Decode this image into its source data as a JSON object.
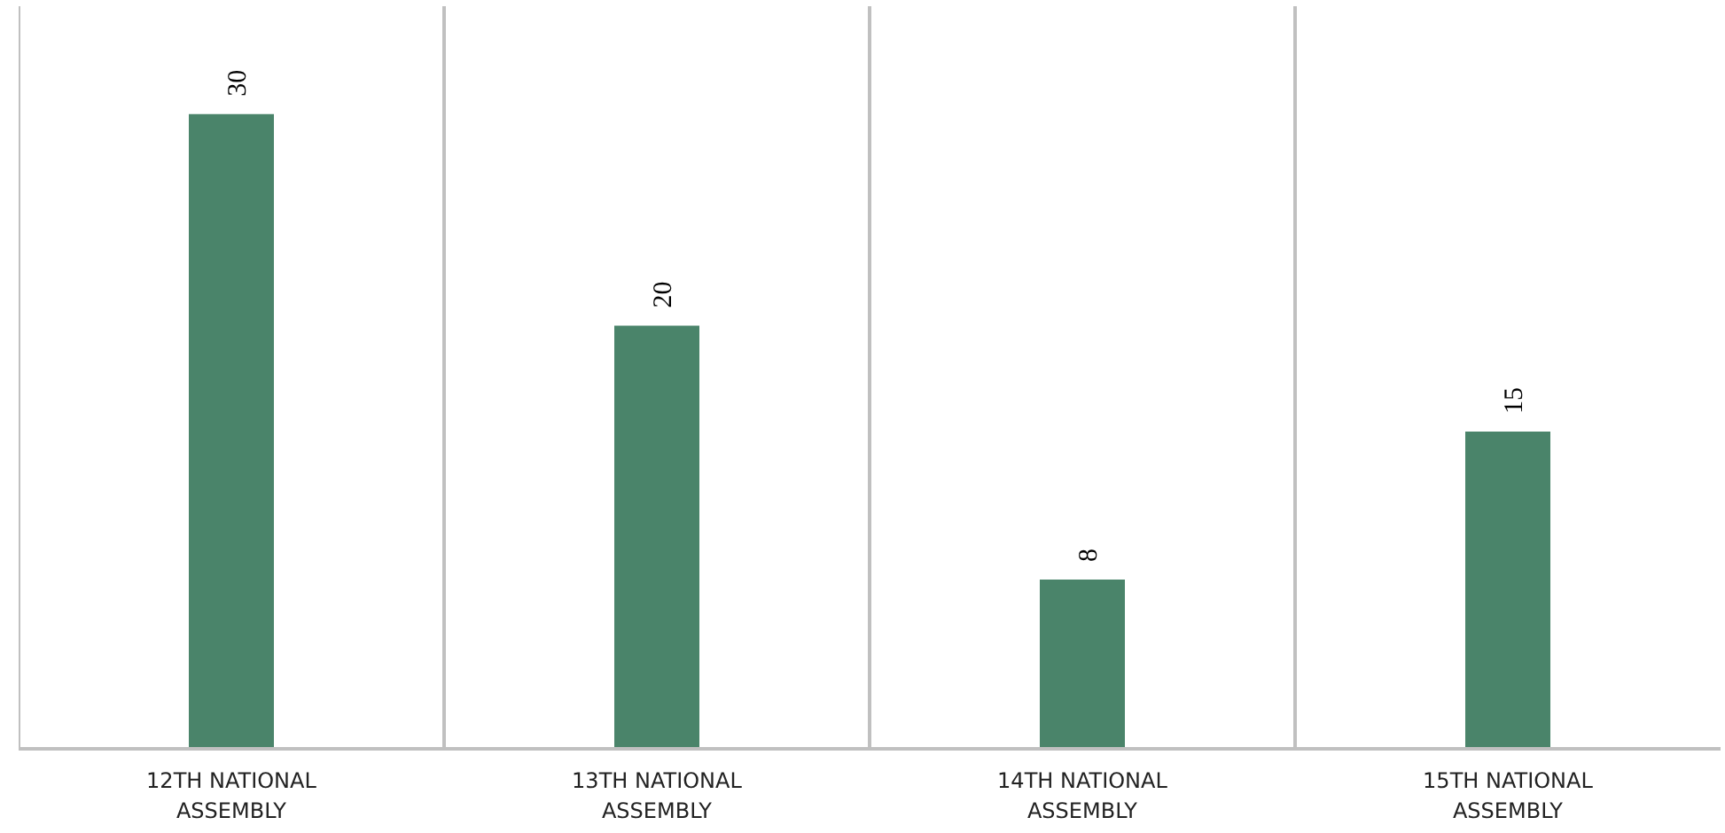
{
  "chart_data": {
    "type": "bar",
    "categories": [
      "12TH NATIONAL ASSEMBLY",
      "13TH NATIONAL ASSEMBLY",
      "14TH NATIONAL ASSEMBLY",
      "15TH NATIONAL ASSEMBLY"
    ],
    "values": [
      30,
      20,
      8,
      15
    ],
    "color": "#4a846a",
    "data_labels": true,
    "grid": "x"
  }
}
